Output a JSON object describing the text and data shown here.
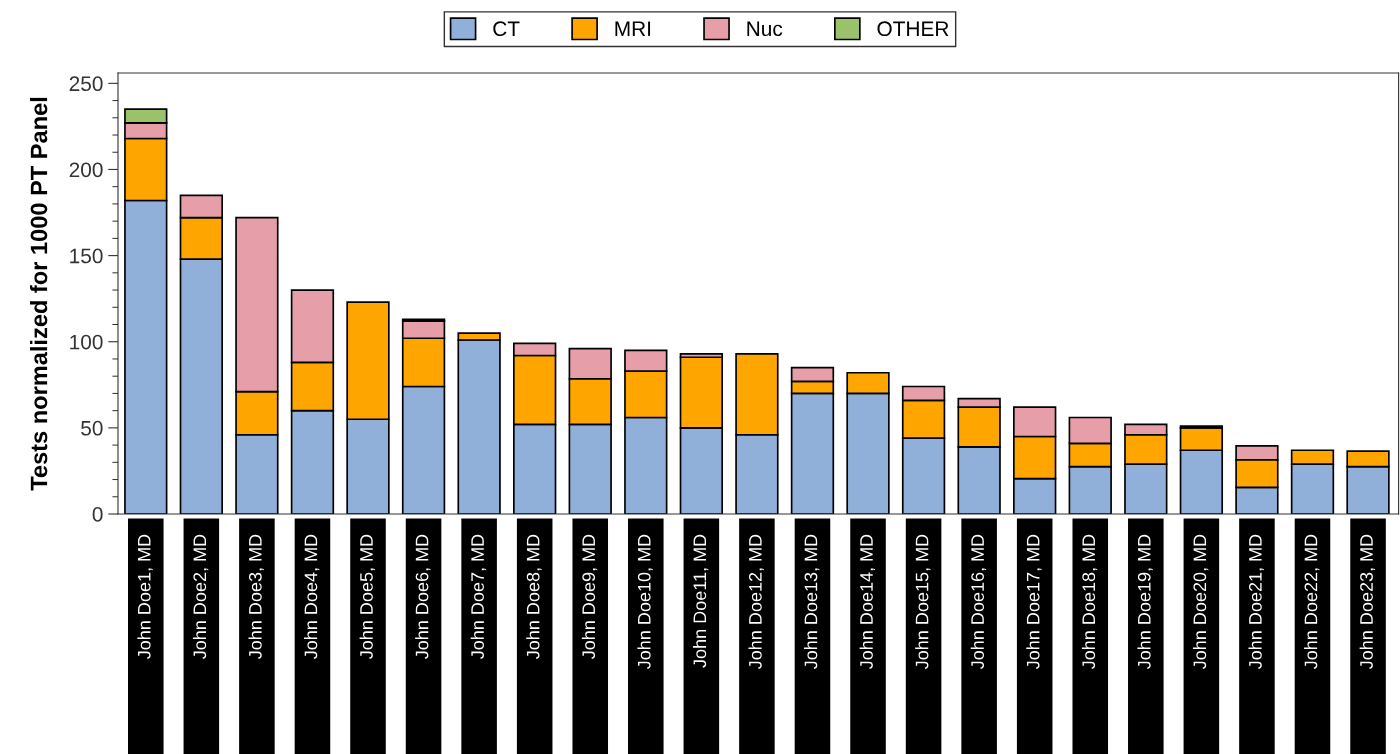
{
  "chart_data": {
    "type": "bar",
    "stacked": true,
    "ylabel": "Tests normalized for 1000 PT Panel",
    "categories": [
      "John Doe1, MD",
      "John Doe2, MD",
      "John Doe3, MD",
      "John Doe4, MD",
      "John Doe5, MD",
      "John Doe6, MD",
      "John Doe7, MD",
      "John Doe8, MD",
      "John Doe9, MD",
      "John Doe10, MD",
      "John Doe11, MD",
      "John Doe12, MD",
      "John Doe13, MD",
      "John Doe14, MD",
      "John Doe15, MD",
      "John Doe16, MD",
      "John Doe17, MD",
      "John Doe18, MD",
      "John Doe19, MD",
      "John Doe20, MD",
      "John Doe21, MD",
      "John Doe22, MD",
      "John Doe23, MD"
    ],
    "series": [
      {
        "name": "CT",
        "color": "#91b0d9",
        "values": [
          182,
          148,
          46,
          60,
          55,
          74,
          101,
          52,
          52,
          56,
          50,
          46,
          70,
          70,
          44,
          39,
          20.5,
          27.5,
          29,
          37,
          15.5,
          29,
          27.5
        ]
      },
      {
        "name": "MRI",
        "color": "#ffa500",
        "values": [
          36,
          24,
          25,
          28,
          68,
          28,
          4,
          40,
          26.5,
          27,
          41,
          47,
          7,
          12,
          22,
          23,
          24.5,
          13.5,
          17,
          13,
          16,
          8,
          9
        ]
      },
      {
        "name": "Nuc",
        "color": "#e69ea8",
        "values": [
          9,
          13,
          101,
          42,
          null,
          10,
          null,
          7,
          17.5,
          12,
          2,
          null,
          8,
          null,
          8,
          5,
          17,
          15,
          6,
          null,
          8,
          null,
          null
        ]
      },
      {
        "name": "OTHER",
        "color": "#9bc26b",
        "values": [
          8,
          null,
          null,
          null,
          null,
          1,
          null,
          null,
          null,
          null,
          null,
          null,
          null,
          null,
          null,
          null,
          null,
          null,
          null,
          1,
          null,
          null,
          null
        ]
      }
    ],
    "ylim": [
      0,
      256
    ],
    "yticks": [
      0,
      50,
      100,
      150,
      200,
      250
    ],
    "grid": false,
    "legend": "top"
  }
}
